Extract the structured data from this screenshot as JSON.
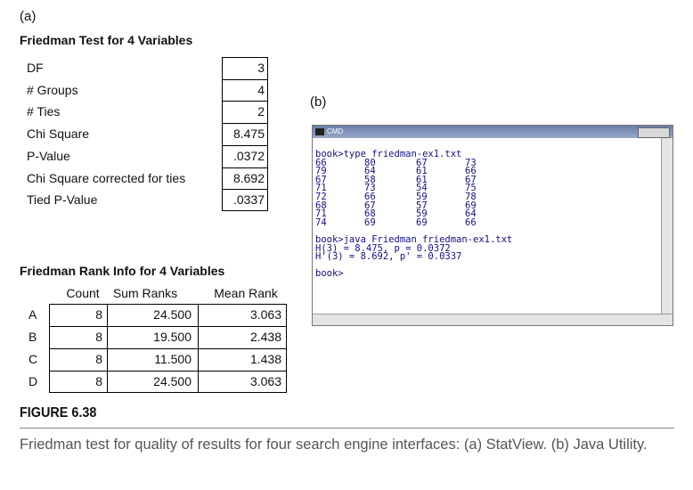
{
  "panel_a": {
    "label": "(a)",
    "test_title": "Friedman Test for 4 Variables",
    "stats": [
      [
        "DF",
        "3"
      ],
      [
        "# Groups",
        "4"
      ],
      [
        "# Ties",
        "2"
      ],
      [
        "Chi Square",
        "8.475"
      ],
      [
        "P-Value",
        ".0372"
      ],
      [
        "Chi Square corrected for ties",
        "8.692"
      ],
      [
        "Tied P-Value",
        ".0337"
      ]
    ],
    "rank_title": "Friedman Rank Info for 4 Variables",
    "rank_headers": [
      "Count",
      "Sum Ranks",
      "Mean Rank"
    ],
    "rank_rows": [
      [
        "A",
        "8",
        "24.500",
        "3.063"
      ],
      [
        "B",
        "8",
        "19.500",
        "2.438"
      ],
      [
        "C",
        "8",
        "11.500",
        "1.438"
      ],
      [
        "D",
        "8",
        "24.500",
        "3.063"
      ]
    ]
  },
  "panel_b": {
    "label": "(b)",
    "window_title": "CMD",
    "command_1": "book>type friedman-ex1.txt",
    "data_rows": [
      [
        "66",
        "80",
        "67",
        "73"
      ],
      [
        "79",
        "64",
        "61",
        "66"
      ],
      [
        "67",
        "58",
        "61",
        "67"
      ],
      [
        "71",
        "73",
        "54",
        "75"
      ],
      [
        "72",
        "66",
        "59",
        "78"
      ],
      [
        "68",
        "67",
        "57",
        "69"
      ],
      [
        "71",
        "68",
        "59",
        "64"
      ],
      [
        "74",
        "69",
        "69",
        "66"
      ]
    ],
    "output": [
      "book>java Friedman friedman-ex1.txt",
      "H(3) = 8.475, p = 0.0372",
      "H'(3) = 8.692, p' = 0.0337"
    ],
    "prompt": "book>"
  },
  "figure": {
    "label": "FIGURE 6.38",
    "caption": "Friedman test for quality of results for four search engine interfaces: (a) StatView. (b) Java Utility."
  }
}
